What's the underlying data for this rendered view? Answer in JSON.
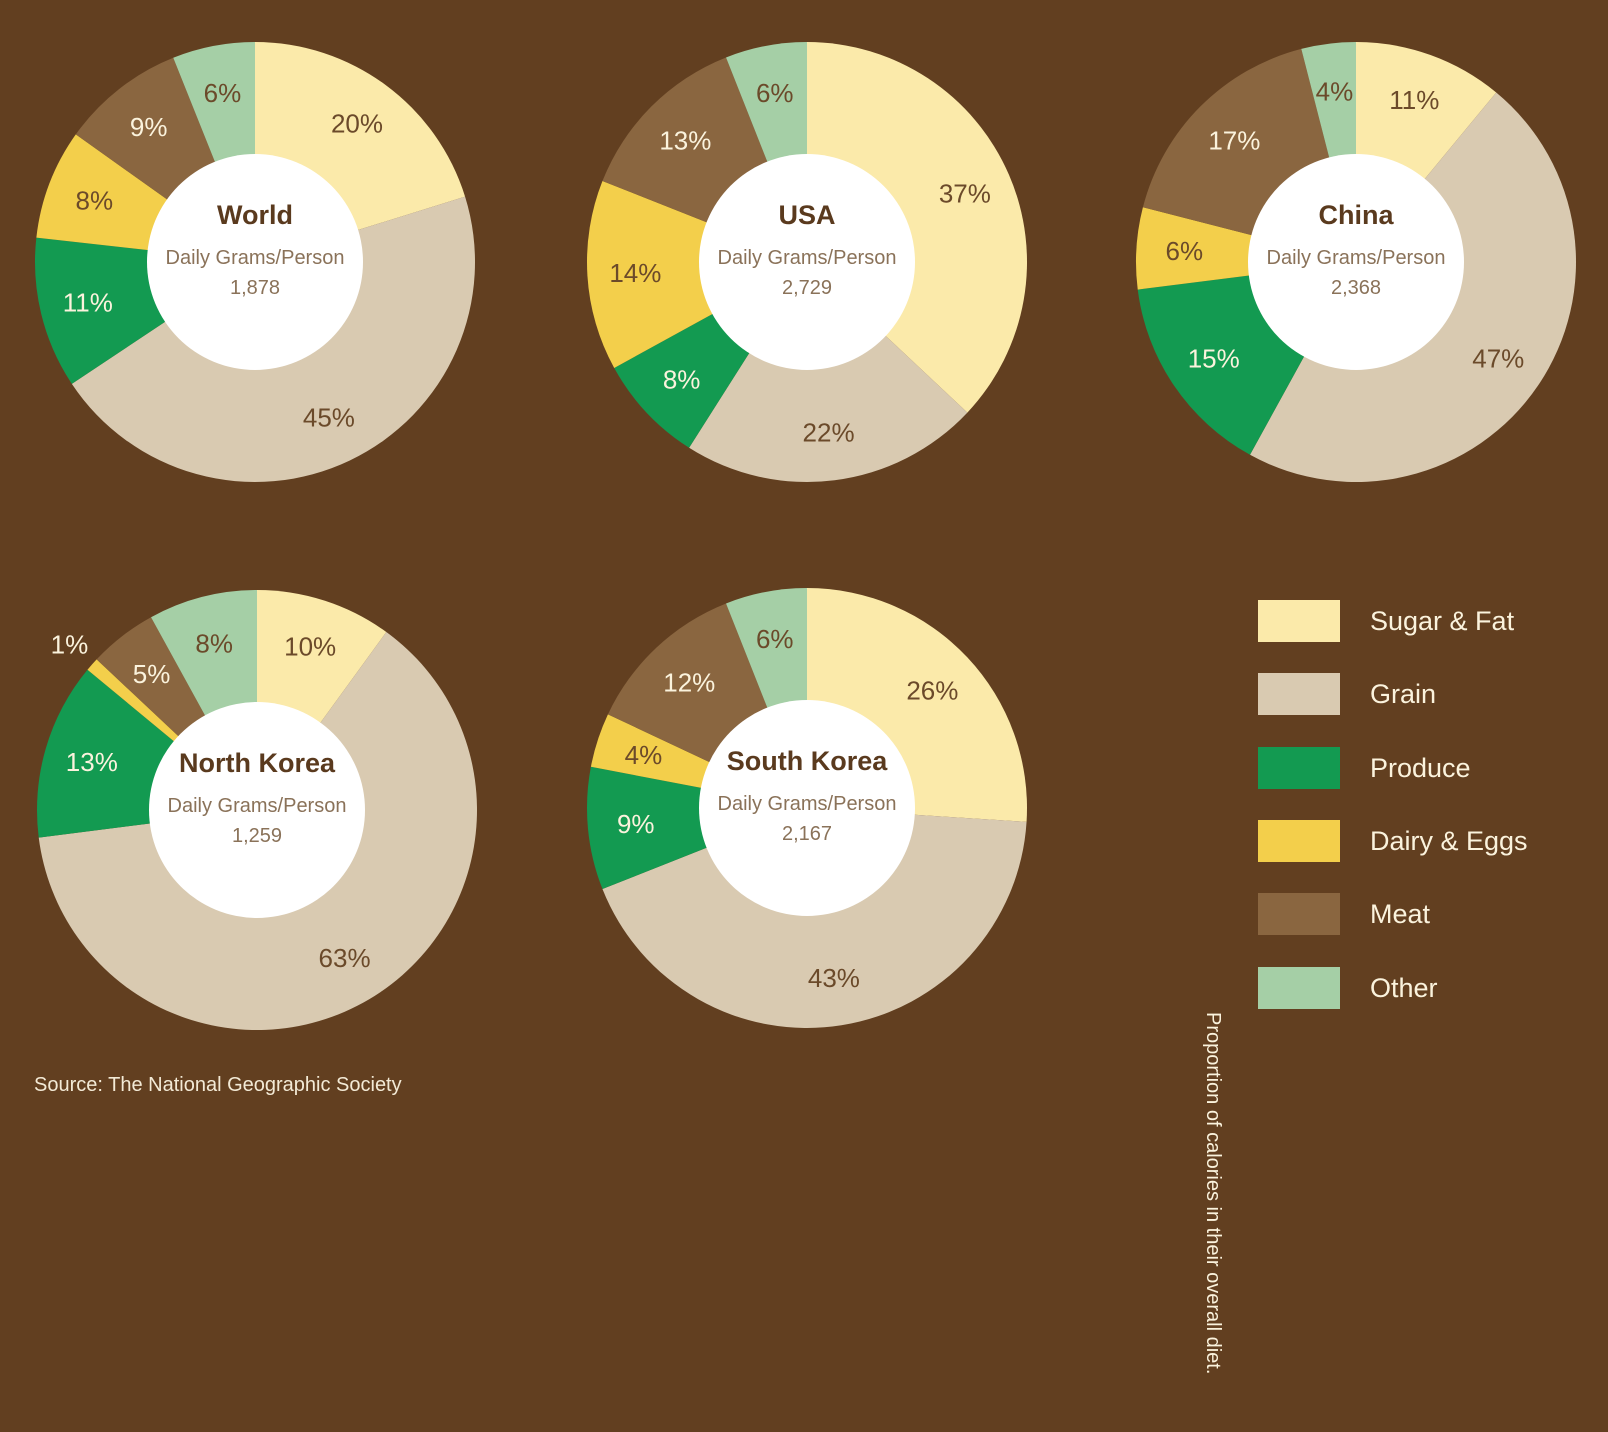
{
  "chart_data": [
    {
      "type": "pie",
      "title": "World",
      "subtitle": "Daily Grams/Person",
      "total": "1,878",
      "categories": [
        "Sugar & Fat",
        "Grain",
        "Produce",
        "Dairy & Eggs",
        "Meat",
        "Other"
      ],
      "values": [
        20,
        45,
        11,
        8,
        9,
        6
      ]
    },
    {
      "type": "pie",
      "title": "USA",
      "subtitle": "Daily Grams/Person",
      "total": "2,729",
      "categories": [
        "Sugar & Fat",
        "Grain",
        "Produce",
        "Dairy & Eggs",
        "Meat",
        "Other"
      ],
      "values": [
        37,
        22,
        8,
        14,
        13,
        6
      ]
    },
    {
      "type": "pie",
      "title": "China",
      "subtitle": "Daily Grams/Person",
      "total": "2,368",
      "categories": [
        "Sugar & Fat",
        "Grain",
        "Produce",
        "Dairy & Eggs",
        "Meat",
        "Other"
      ],
      "values": [
        11,
        47,
        15,
        6,
        17,
        4
      ]
    },
    {
      "type": "pie",
      "title": "North Korea",
      "subtitle": "Daily Grams/Person",
      "total": "1,259",
      "categories": [
        "Sugar & Fat",
        "Grain",
        "Produce",
        "Dairy & Eggs",
        "Meat",
        "Other"
      ],
      "values": [
        10,
        63,
        13,
        1,
        5,
        8
      ]
    },
    {
      "type": "pie",
      "title": "South Korea",
      "subtitle": "Daily Grams/Person",
      "total": "2,167",
      "categories": [
        "Sugar & Fat",
        "Grain",
        "Produce",
        "Dairy & Eggs",
        "Meat",
        "Other"
      ],
      "values": [
        26,
        43,
        9,
        4,
        12,
        6
      ]
    }
  ],
  "colors": {
    "Sugar & Fat": "#fbeaaa",
    "Grain": "#d9cab1",
    "Produce": "#139a51",
    "Dairy & Eggs": "#f3cf4b",
    "Meat": "#8a6640",
    "Other": "#a5cfa6",
    "background": "#623f20"
  },
  "legend": {
    "items": [
      "Sugar & Fat",
      "Grain",
      "Produce",
      "Dairy & Eggs",
      "Meat",
      "Other"
    ],
    "axis_note": "Proportion of calories in their overall diet."
  },
  "source": "Source: The National Geographic Society"
}
